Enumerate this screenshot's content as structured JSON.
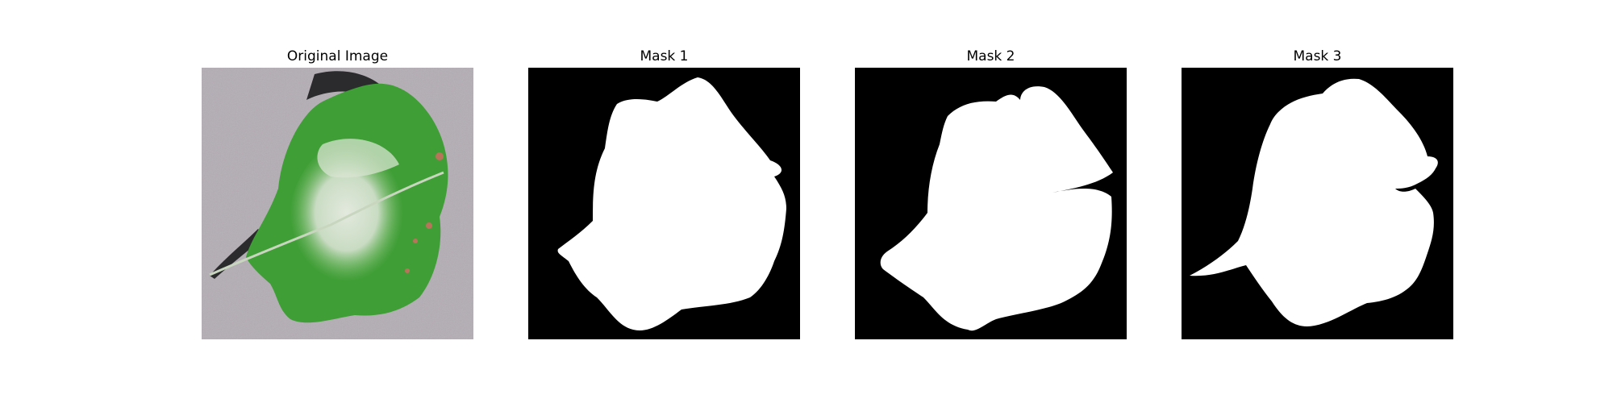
{
  "panels": [
    {
      "title": "Original Image",
      "kind": "photo"
    },
    {
      "title": "Mask 1",
      "kind": "mask"
    },
    {
      "title": "Mask 2",
      "kind": "mask"
    },
    {
      "title": "Mask 3",
      "kind": "mask"
    }
  ],
  "colors": {
    "background": "#ffffff",
    "mask_foreground": "#ffffff",
    "mask_background": "#000000",
    "photo_backdrop": "#b3adb4",
    "leaf_green": "#3f9e36",
    "leaf_pale": "#d8e4d2",
    "leaf_spot": "#b7745a",
    "shadow": "#2b2b2e"
  }
}
